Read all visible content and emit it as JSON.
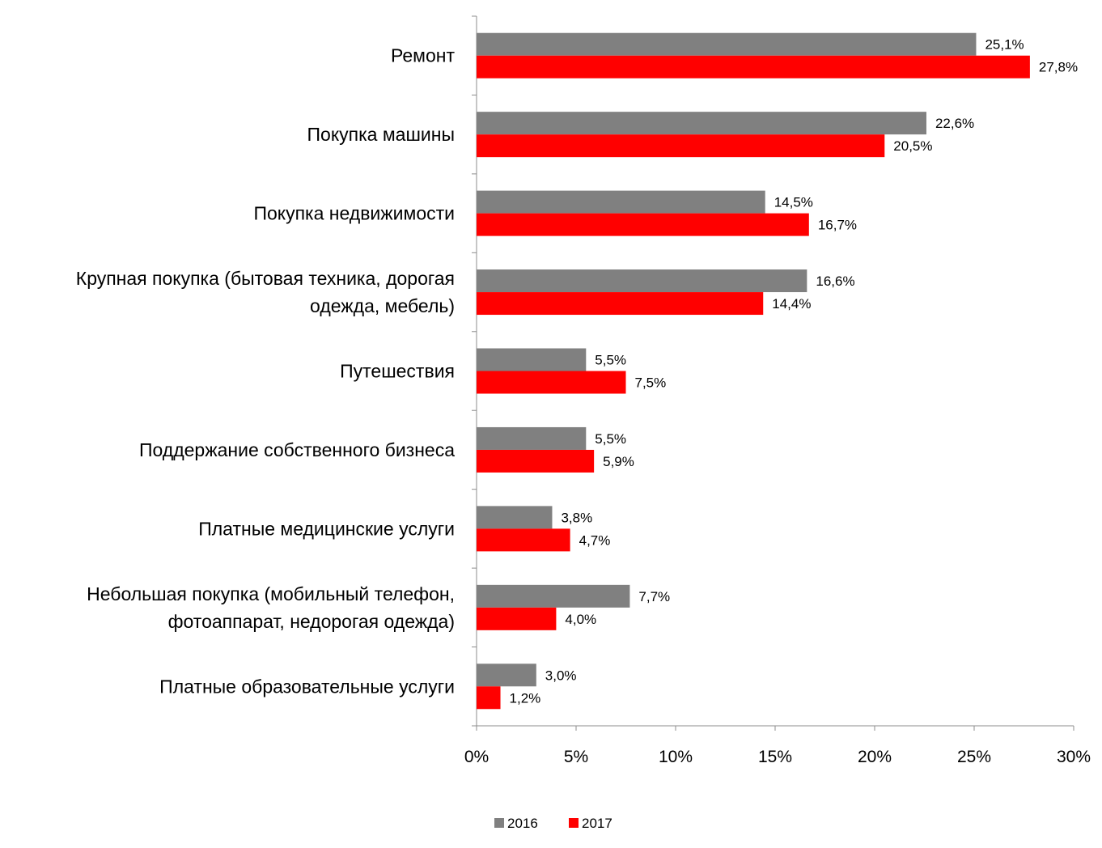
{
  "chart_data": {
    "type": "bar",
    "orientation": "horizontal",
    "title": "",
    "xlabel": "",
    "ylabel": "",
    "categories": [
      [
        "Ремонт"
      ],
      [
        "Покупка машины"
      ],
      [
        "Покупка недвижимости"
      ],
      [
        "Крупная покупка (бытовая техника, дорогая",
        "одежда, мебель)"
      ],
      [
        "Путешествия"
      ],
      [
        "Поддержание собственного бизнеса"
      ],
      [
        "Платные медицинские услуги"
      ],
      [
        "Небольшая покупка (мобильный телефон,",
        "фотоаппарат, недорогая одежда)"
      ],
      [
        "Платные образовательные услуги"
      ]
    ],
    "series": [
      {
        "name": "2016",
        "color": "#808080",
        "values": [
          25.1,
          22.6,
          14.5,
          16.6,
          5.5,
          5.5,
          3.8,
          7.7,
          3.0
        ],
        "labels": [
          "25,1%",
          "22,6%",
          "14,5%",
          "16,6%",
          "5,5%",
          "5,5%",
          "3,8%",
          "7,7%",
          "3,0%"
        ]
      },
      {
        "name": "2017",
        "color": "#ff0000",
        "values": [
          27.8,
          20.5,
          16.7,
          14.4,
          7.5,
          5.9,
          4.7,
          4.0,
          1.2
        ],
        "labels": [
          "27,8%",
          "20,5%",
          "16,7%",
          "14,4%",
          "7,5%",
          "5,9%",
          "4,7%",
          "4,0%",
          "1,2%"
        ]
      }
    ],
    "xlim": [
      0,
      30
    ],
    "xticks": [
      0,
      5,
      10,
      15,
      20,
      25,
      30
    ],
    "xtick_labels": [
      "0%",
      "5%",
      "10%",
      "15%",
      "20%",
      "25%",
      "30%"
    ],
    "grid": false,
    "legend_position": "bottom"
  }
}
